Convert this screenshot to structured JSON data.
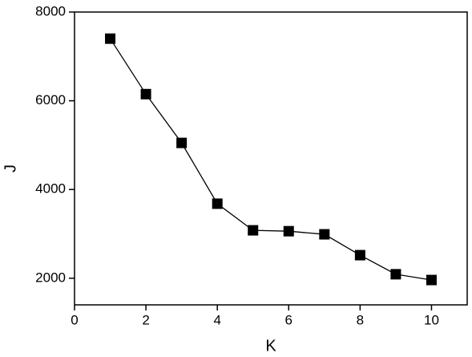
{
  "chart_data": {
    "type": "line",
    "x_label": "K",
    "y_label": "J",
    "x": [
      1,
      2,
      3,
      4,
      5,
      6,
      7,
      8,
      9,
      10
    ],
    "series": [
      {
        "color": "#000000",
        "values": [
          7400,
          6150,
          5050,
          3680,
          3080,
          3060,
          2990,
          2520,
          2090,
          1960
        ]
      }
    ],
    "xlim": [
      0,
      11
    ],
    "xticks": [
      0,
      2,
      4,
      6,
      8,
      10
    ],
    "ylim": [
      1400,
      8000
    ],
    "yticks": [
      2000,
      4000,
      6000,
      8000
    ],
    "grid": false
  }
}
